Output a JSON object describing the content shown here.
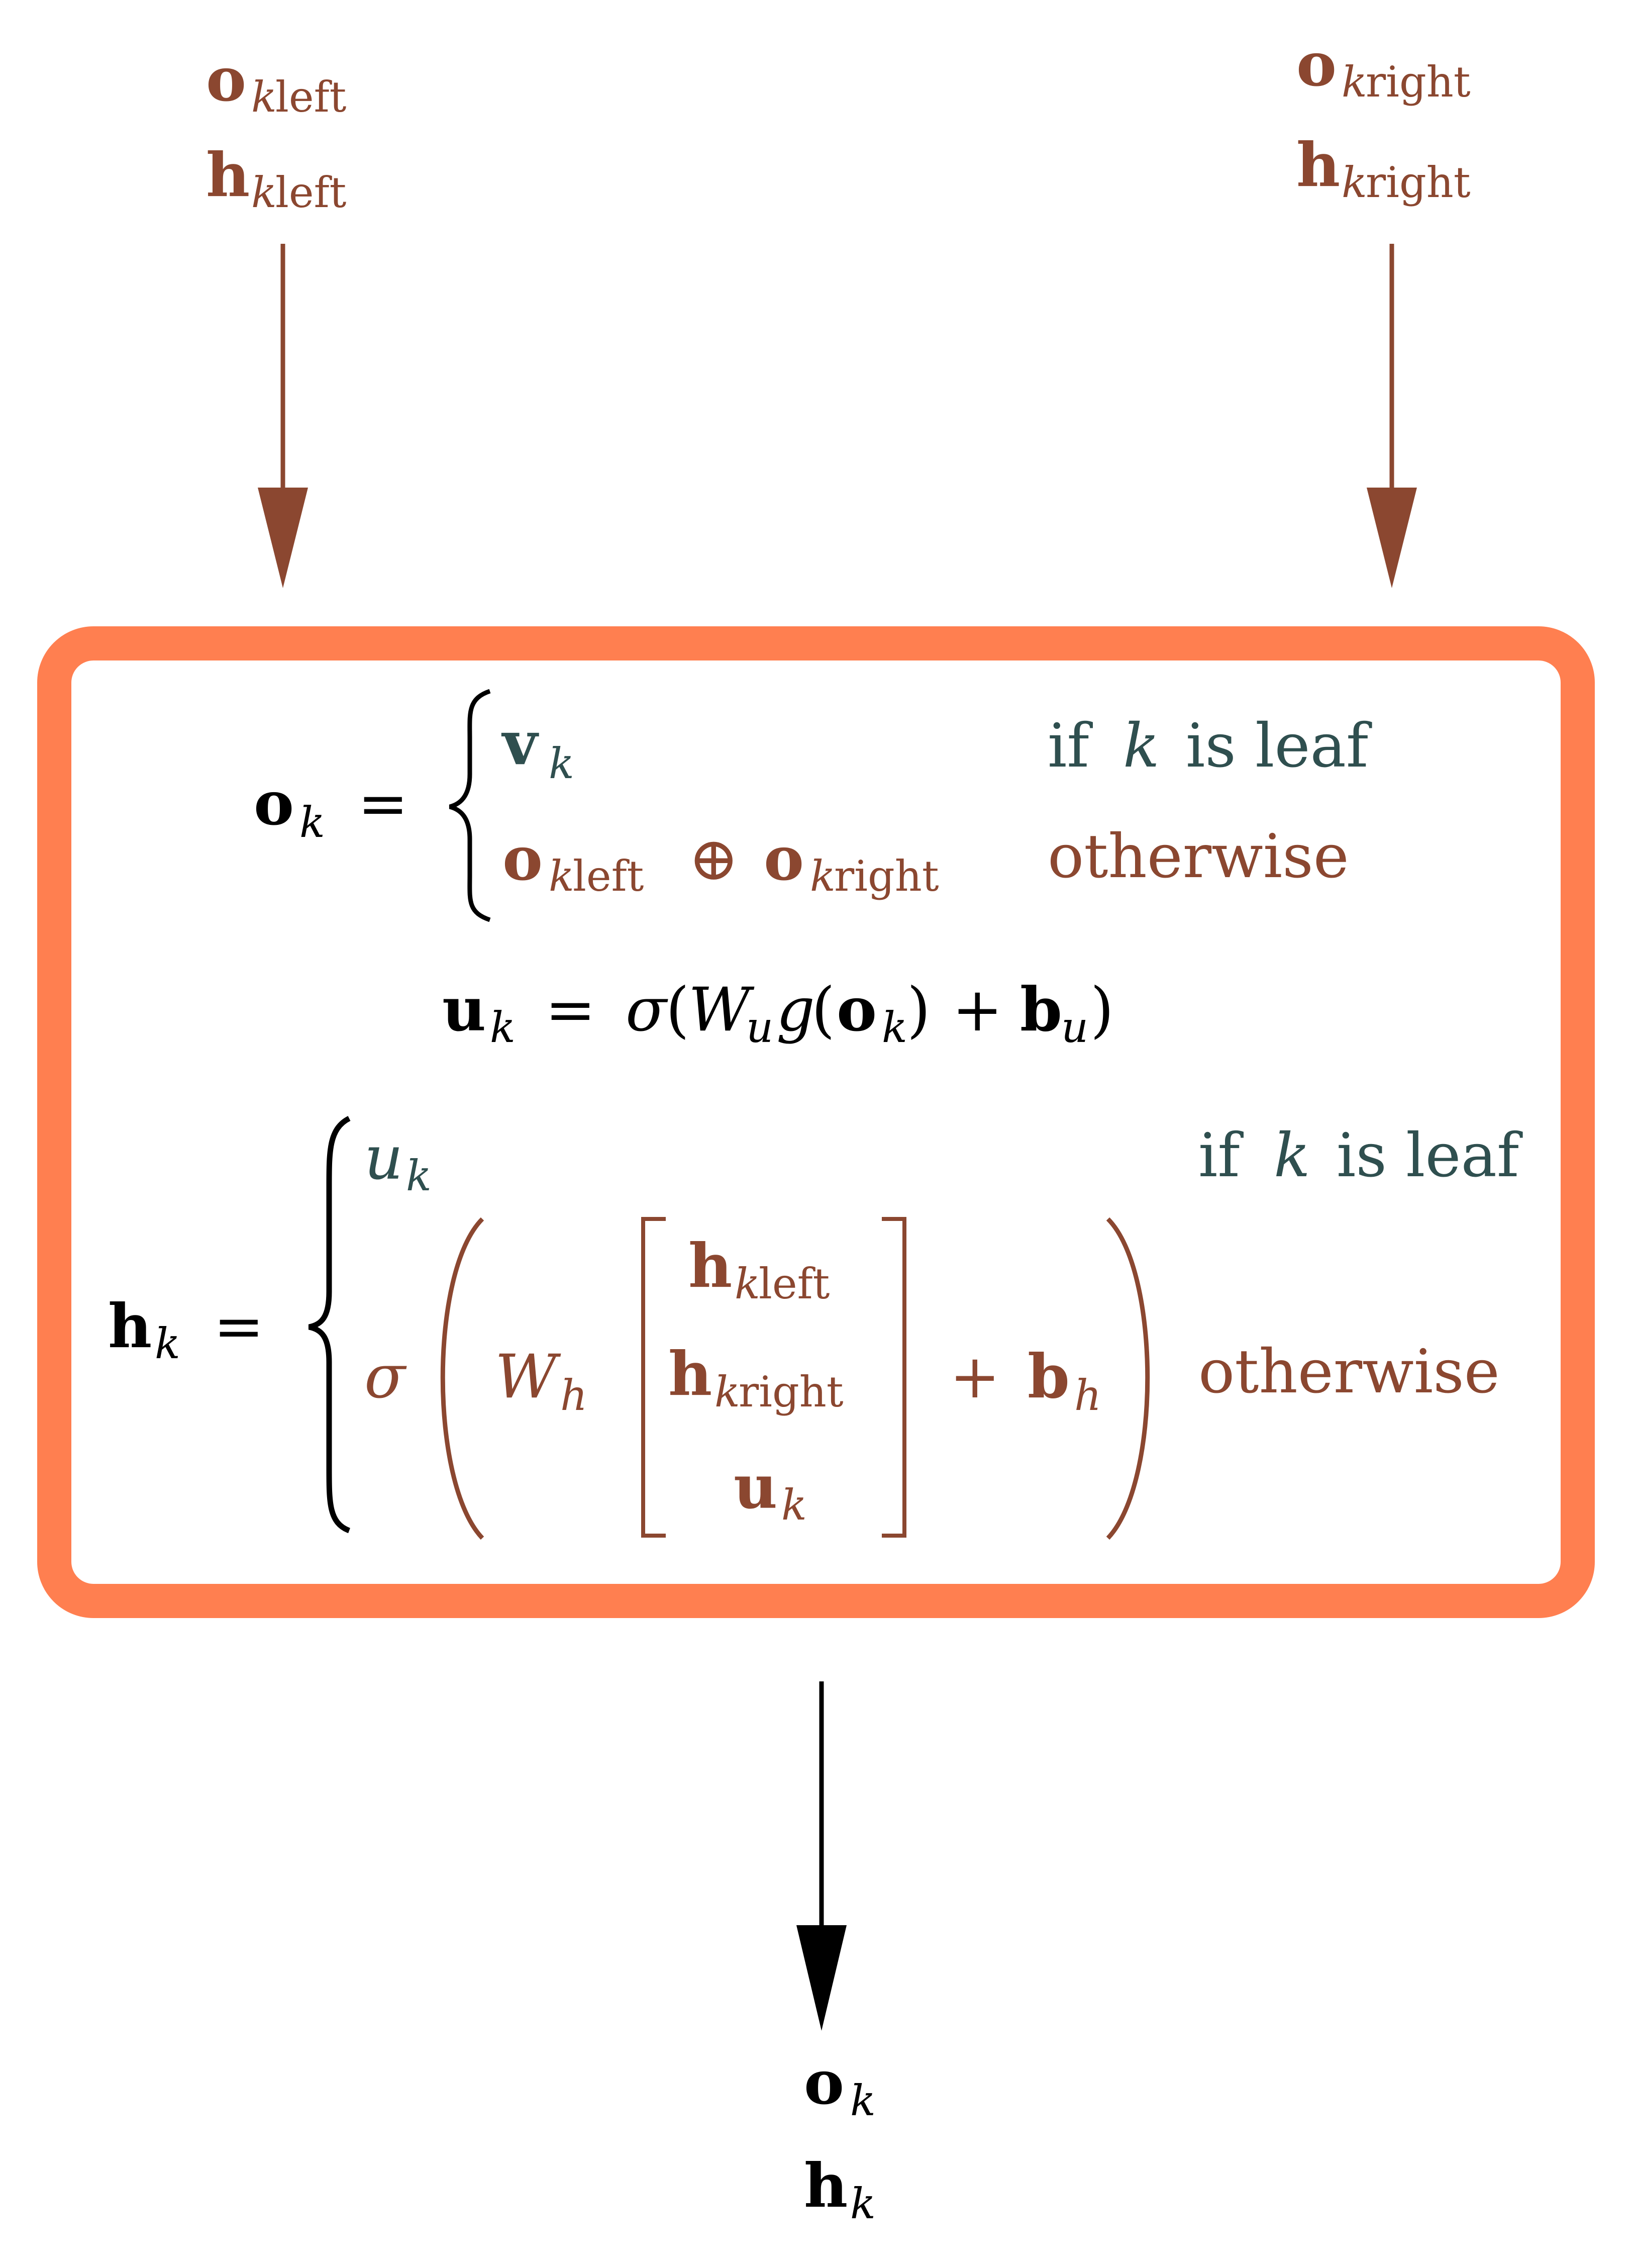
{
  "colors": {
    "input_arrow": "#8B4730",
    "output_arrow": "#000000",
    "box_border": "#FF7F50",
    "brown_text": "#8B4730",
    "slate_text": "#2F4F4F"
  },
  "inputs": {
    "left": {
      "o": {
        "symbol": "o",
        "subscript_var": "k",
        "subscript_text": "left"
      },
      "h": {
        "symbol": "h",
        "subscript_var": "k",
        "subscript_text": "left"
      }
    },
    "right": {
      "o": {
        "symbol": "o",
        "subscript_var": "k",
        "subscript_text": "right"
      },
      "h": {
        "symbol": "h",
        "subscript_var": "k",
        "subscript_text": "right"
      }
    }
  },
  "equations": {
    "o_def": {
      "lhs_symbol": "o",
      "lhs_sub": "k",
      "eq": "=",
      "case1_symbol": "v",
      "case1_sub": "k",
      "case1_cond_pre": "if",
      "case1_cond_var": "k",
      "case1_cond_post": "is leaf",
      "case2_a_symbol": "o",
      "case2_a_sub_var": "k",
      "case2_a_sub_text": "left",
      "case2_op": "⊕",
      "case2_b_symbol": "o",
      "case2_b_sub_var": "k",
      "case2_b_sub_text": "right",
      "case2_cond": "otherwise"
    },
    "u_def": {
      "lhs_symbol": "u",
      "lhs_sub": "k",
      "eq": "=",
      "sigma": "σ",
      "open": "(",
      "W": "W",
      "W_sub": "u",
      "g": "g",
      "g_open": "(",
      "o_symbol": "o",
      "o_sub": "k",
      "g_close": ")",
      "plus": "+",
      "b_symbol": "b",
      "b_sub": "u",
      "close": ")"
    },
    "h_def": {
      "lhs_symbol": "h",
      "lhs_sub": "k",
      "eq": "=",
      "case1_symbol": "u",
      "case1_sub": "k",
      "case1_cond_pre": "if",
      "case1_cond_var": "k",
      "case1_cond_post": "is leaf",
      "sigma": "σ",
      "W": "W",
      "W_sub": "h",
      "vec1_symbol": "h",
      "vec1_sub_var": "k",
      "vec1_sub_text": "left",
      "vec2_symbol": "h",
      "vec2_sub_var": "k",
      "vec2_sub_text": "right",
      "vec3_symbol": "u",
      "vec3_sub": "k",
      "plus": "+",
      "b_symbol": "b",
      "b_sub": "h",
      "case2_cond": "otherwise"
    }
  },
  "outputs": {
    "o": {
      "symbol": "o",
      "subscript": "k"
    },
    "h": {
      "symbol": "h",
      "subscript": "k"
    }
  }
}
